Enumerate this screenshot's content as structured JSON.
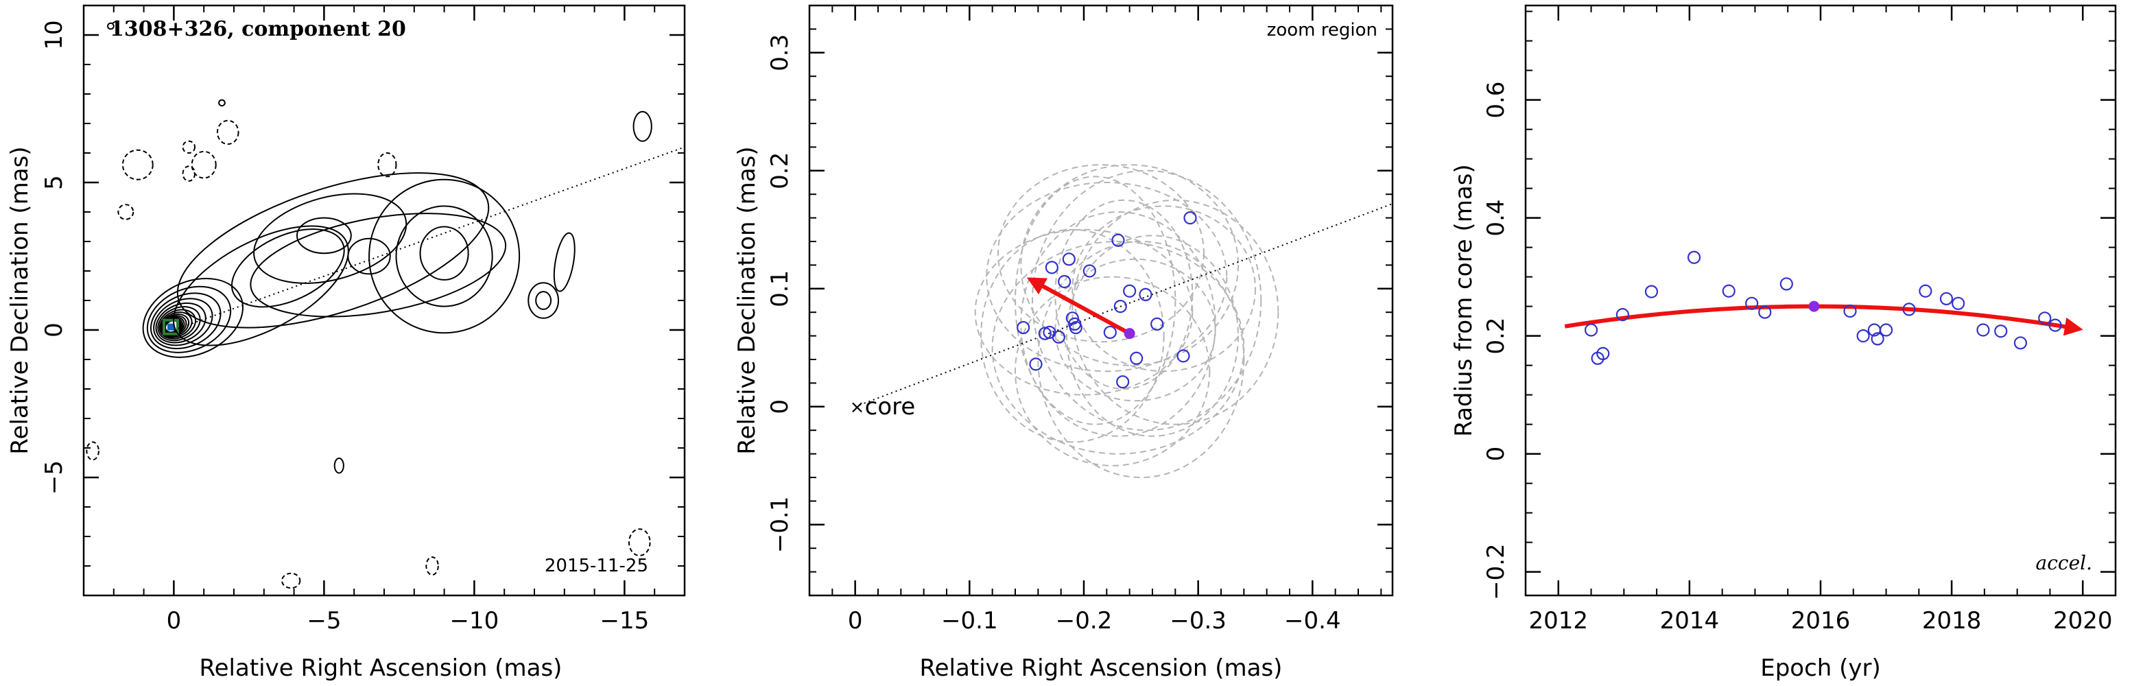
{
  "chart_data": [
    {
      "type": "map",
      "title": "1308+326, component 20",
      "date_label": "2015-11-25",
      "xlabel": "Relative Right Ascension (mas)",
      "ylabel": "Relative Declination (mas)",
      "xlim": [
        3,
        -17
      ],
      "ylim": [
        -9,
        11
      ],
      "xticks": [
        0,
        -5,
        -10,
        -15
      ],
      "xtick_labels": [
        "0",
        "−5",
        "−10",
        "−15"
      ],
      "yticks": [
        -5,
        0,
        5,
        10
      ],
      "ytick_labels": [
        "−5",
        "0",
        "5",
        "10"
      ],
      "contour_color": "#000000",
      "position_angle_line": {
        "from": [
          0,
          0
        ],
        "to": [
          -17,
          6.2
        ],
        "style": "dotted"
      },
      "core_marker": {
        "x": 0.1,
        "y": 0.1,
        "color": "#2e7d32"
      }
    },
    {
      "type": "scatter",
      "annotation": "zoom region",
      "core_label": "core",
      "xlabel": "Relative Right Ascension (mas)",
      "ylabel": "Relative Declination (mas)",
      "xlim": [
        0.04,
        -0.47
      ],
      "ylim": [
        -0.16,
        0.34
      ],
      "xticks": [
        0,
        -0.1,
        -0.2,
        -0.3,
        -0.4
      ],
      "xtick_labels": [
        "0",
        "−0.1",
        "−0.2",
        "−0.3",
        "−0.4"
      ],
      "yticks": [
        -0.1,
        0,
        0.1,
        0.2,
        0.3
      ],
      "ytick_labels": [
        "−0.1",
        "0",
        "0.1",
        "0.2",
        "0.3"
      ],
      "points": [
        [
          -0.147,
          0.067
        ],
        [
          -0.158,
          0.036
        ],
        [
          -0.166,
          0.062
        ],
        [
          -0.17,
          0.063
        ],
        [
          -0.172,
          0.118
        ],
        [
          -0.178,
          0.059
        ],
        [
          -0.183,
          0.106
        ],
        [
          -0.187,
          0.125
        ],
        [
          -0.19,
          0.075
        ],
        [
          -0.192,
          0.07
        ],
        [
          -0.193,
          0.067
        ],
        [
          -0.205,
          0.115
        ],
        [
          -0.223,
          0.063
        ],
        [
          -0.23,
          0.141
        ],
        [
          -0.232,
          0.085
        ],
        [
          -0.234,
          0.021
        ],
        [
          -0.24,
          0.098
        ],
        [
          -0.246,
          0.041
        ],
        [
          -0.254,
          0.095
        ],
        [
          -0.264,
          0.07
        ],
        [
          -0.287,
          0.043
        ],
        [
          -0.293,
          0.16
        ]
      ],
      "mean_point": [
        -0.24,
        0.062
      ],
      "velocity_vector": {
        "from": [
          -0.24,
          0.062
        ],
        "to": [
          -0.153,
          0.108
        ]
      },
      "error_ellipses": [
        [
          -0.2,
          0.08,
          0.095,
          0.07
        ],
        [
          -0.23,
          0.07,
          0.085,
          0.095
        ],
        [
          -0.26,
          0.06,
          0.075,
          0.085
        ],
        [
          -0.22,
          0.11,
          0.105,
          0.08
        ],
        [
          -0.25,
          0.04,
          0.09,
          0.1
        ],
        [
          -0.21,
          0.09,
          0.07,
          0.105
        ],
        [
          -0.27,
          0.1,
          0.08,
          0.07
        ],
        [
          -0.24,
          0.12,
          0.095,
          0.085
        ],
        [
          -0.23,
          0.05,
          0.11,
          0.09
        ],
        [
          -0.19,
          0.06,
          0.08,
          0.09
        ],
        [
          -0.28,
          0.08,
          0.09,
          0.095
        ],
        [
          -0.235,
          0.095,
          0.06,
          0.08
        ],
        [
          -0.225,
          0.03,
          0.085,
          0.08
        ],
        [
          -0.215,
          0.13,
          0.09,
          0.075
        ],
        [
          -0.255,
          0.09,
          0.1,
          0.11
        ],
        [
          -0.245,
          0.065,
          0.07,
          0.06
        ]
      ],
      "position_angle_line": {
        "from": [
          0,
          0
        ],
        "to": [
          -0.47,
          0.172
        ],
        "style": "dotted"
      },
      "point_color": "#3333cc",
      "ellipse_color": "#b4b4b4",
      "vector_color": "#ee1111",
      "mean_color": "#8a2be2"
    },
    {
      "type": "scatter",
      "annotation": "accel.",
      "xlabel": "Epoch (yr)",
      "ylabel": "Radius from core (mas)",
      "xlim": [
        2011.5,
        2020.5
      ],
      "ylim": [
        -0.24,
        0.76
      ],
      "xticks": [
        2012,
        2014,
        2016,
        2018,
        2020
      ],
      "xtick_labels": [
        "2012",
        "2014",
        "2016",
        "2018",
        "2020"
      ],
      "yticks": [
        -0.2,
        0,
        0.2,
        0.4,
        0.6
      ],
      "ytick_labels": [
        "−0.2",
        "0",
        "0.2",
        "0.4",
        "0.6"
      ],
      "points": [
        [
          2012.5,
          0.21
        ],
        [
          2012.6,
          0.162
        ],
        [
          2012.68,
          0.17
        ],
        [
          2012.98,
          0.236
        ],
        [
          2013.42,
          0.275
        ],
        [
          2014.07,
          0.333
        ],
        [
          2014.6,
          0.276
        ],
        [
          2014.95,
          0.255
        ],
        [
          2015.15,
          0.24
        ],
        [
          2015.48,
          0.288
        ],
        [
          2016.45,
          0.242
        ],
        [
          2016.65,
          0.2
        ],
        [
          2016.82,
          0.21
        ],
        [
          2016.87,
          0.195
        ],
        [
          2017.0,
          0.21
        ],
        [
          2017.35,
          0.245
        ],
        [
          2017.6,
          0.276
        ],
        [
          2017.92,
          0.263
        ],
        [
          2018.1,
          0.255
        ],
        [
          2018.48,
          0.21
        ],
        [
          2018.75,
          0.208
        ],
        [
          2019.05,
          0.188
        ],
        [
          2019.42,
          0.23
        ],
        [
          2019.58,
          0.218
        ]
      ],
      "mean_point": [
        2015.9,
        0.25
      ],
      "fit_curve": {
        "x_range": [
          2012.1,
          2019.95
        ],
        "center_x": 2015.9,
        "peak_y": 0.25,
        "curvature": -0.00235
      },
      "point_color": "#3333cc",
      "fit_color": "#ee1111",
      "mean_color": "#8a2be2"
    }
  ]
}
